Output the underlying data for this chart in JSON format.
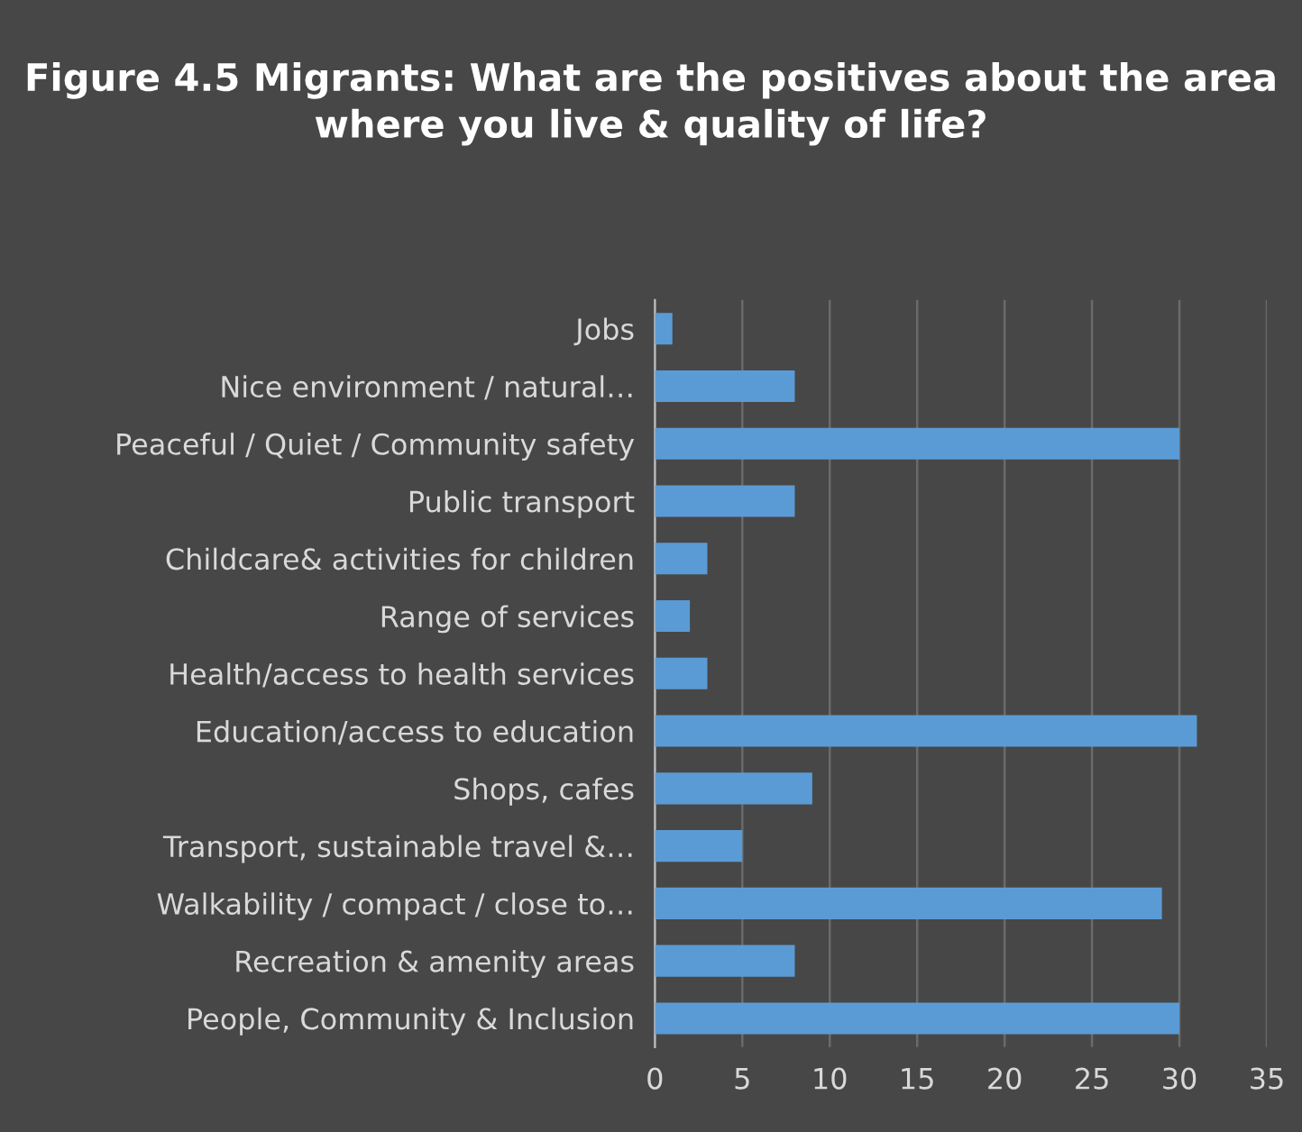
{
  "chart_data": {
    "type": "bar",
    "orientation": "horizontal",
    "title": "Figure 4.5 Migrants: What are the positives about the area where you live & quality of life?",
    "categories": [
      "Jobs",
      "Nice environment / natural…",
      "Peaceful / Quiet / Community safety",
      "Public transport",
      "Childcare& activities for children",
      "Range of services",
      "Health/access to health services",
      "Education/access to education",
      "Shops, cafes",
      "Transport, sustainable travel &…",
      "Walkability / compact / close to…",
      "Recreation & amenity areas",
      "People, Community & Inclusion"
    ],
    "values": [
      1,
      8,
      30,
      8,
      3,
      2,
      3,
      31,
      9,
      5,
      29,
      8,
      30
    ],
    "color": "#5b9bd5",
    "xlim": [
      0,
      35
    ],
    "xticks": [
      0,
      5,
      10,
      15,
      20,
      25,
      30,
      35
    ],
    "grid": "x",
    "legend": false
  }
}
